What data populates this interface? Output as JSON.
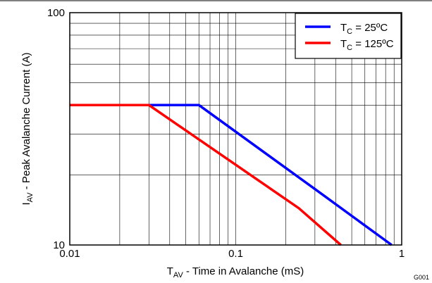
{
  "chart_data": {
    "type": "line",
    "title": "",
    "xlabel": {
      "main": "T",
      "sub": "AV",
      "rest": " - Time in Avalanche (mS)"
    },
    "ylabel": {
      "main": "I",
      "sub": "AV",
      "rest": " - Peak Avalanche Current (A)"
    },
    "x_scale": "log",
    "y_scale": "log",
    "xlim": [
      0.01,
      1
    ],
    "ylim": [
      10,
      100
    ],
    "x_ticks": [
      {
        "value": 0.01,
        "label": "0.01"
      },
      {
        "value": 0.1,
        "label": "0.1"
      },
      {
        "value": 1,
        "label": "1"
      }
    ],
    "y_ticks": [
      {
        "value": 10,
        "label": "10"
      },
      {
        "value": 100,
        "label": "100"
      }
    ],
    "grid": true,
    "legend_position": "top-right",
    "series": [
      {
        "name": {
          "main": "T",
          "sub": "C",
          "rest": " = 25ºC"
        },
        "color": "#0000ff",
        "points": [
          [
            0.01,
            40
          ],
          [
            0.06,
            40
          ],
          [
            0.3,
            17.4
          ],
          [
            0.87,
            10
          ]
        ]
      },
      {
        "name": {
          "main": "T",
          "sub": "C",
          "rest": " = 125ºC"
        },
        "color": "#ff0000",
        "points": [
          [
            0.01,
            40
          ],
          [
            0.03,
            40
          ],
          [
            0.24,
            14.4
          ],
          [
            0.43,
            10
          ]
        ]
      }
    ],
    "figure_code": "G001"
  }
}
